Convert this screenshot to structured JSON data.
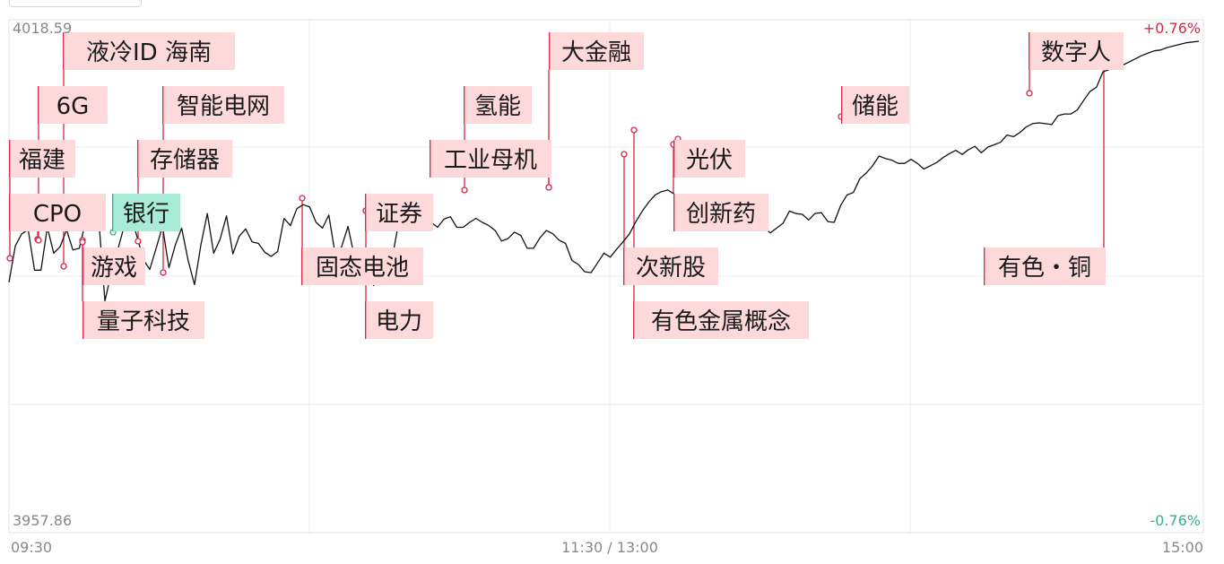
{
  "chart_data": {
    "type": "line",
    "y_max_label": "4018.59",
    "y_min_label": "3957.86",
    "pct_max_label": "+0.76%",
    "pct_min_label": "-0.76%",
    "ylim": [
      3957.86,
      4018.59
    ],
    "x_labels": [
      "09:30",
      "11:30 / 13:00",
      "15:00"
    ],
    "colors": {
      "up": "#d9264c",
      "down": "#2bb58a",
      "line": "#111111",
      "tag_up_bg": "#fdd9d9",
      "tag_down_bg": "#a8ecd7"
    },
    "series": [
      {
        "values": [
          3988.8,
          3993.3,
          3994.8,
          3995.3,
          3990.3,
          3990.3,
          3995.6,
          3992.4,
          3993.2,
          3995.3,
          3992.8,
          3993.0,
          3996.4,
          3997.1,
          3996.9,
          3986.5,
          3990.0,
          3992.8,
          3995.7,
          3997.0,
          3994.5,
          3991.6,
          3990.4,
          3993.0,
          3995.7,
          3990.6,
          3993.4,
          3995.5,
          3991.5,
          3988.5,
          3993.4,
          3997.3,
          3992.4,
          3994.1,
          3997.0,
          3992.3,
          3994.5,
          3995.4,
          3993.8,
          3993.6,
          3992.5,
          3992.0,
          3992.6,
          3996.7,
          3995.8,
          3997.9,
          3998.4,
          3998.1,
          3996.2,
          3995.5,
          3997.1,
          3992.2,
          3993.2,
          3995.7,
          3991.9,
          3990.8,
          3990.4,
          3988.4,
          3989.4,
          3990.3,
          3992.2,
          3996.6,
          3999.4,
          3996.8,
          3995.7,
          3997.5,
          3996.2,
          3995.6,
          3996.6,
          3996.9,
          3995.6,
          3995.6,
          3996.2,
          3996.7,
          3996.2,
          3995.8,
          3995.2,
          3993.9,
          3994.2,
          3995.0,
          3994.6,
          3993.0,
          3993.0,
          3994.3,
          3995.2,
          3994.8,
          3994.0,
          3993.6,
          3991.5,
          3991.0,
          3990.1,
          3990.0,
          3991.2,
          3992.4,
          3991.9,
          3992.9,
          3993.8,
          3994.8,
          3996.3,
          3997.6,
          3998.7,
          3999.6,
          4000.0,
          4000.2,
          3999.7,
          3998.4,
          3999.7,
          3999.2,
          3997.9,
          3997.1,
          3996.9,
          3997.2,
          3997.6,
          3996.8,
          3995.4,
          3996.3,
          3996.8,
          3995.7,
          3995.6,
          3994.9,
          3995.5,
          3996.1,
          3997.6,
          3997.3,
          3997.2,
          3996.5,
          3997.3,
          3997.4,
          3996.3,
          3996.2,
          3998.3,
          3999.6,
          3999.9,
          4001.6,
          4002.3,
          4003.2,
          4004.4,
          4004.1,
          4003.9,
          4003.5,
          4003.5,
          4004.0,
          4003.5,
          4002.8,
          4003.2,
          4003.6,
          4004.2,
          4004.7,
          4005.1,
          4004.6,
          4005.2,
          4005.6,
          4004.8,
          4005.5,
          4005.8,
          4006.1,
          4007.0,
          4006.8,
          4007.3,
          4008.0,
          4008.4,
          4008.5,
          4008.4,
          4008.3,
          4009.4,
          4009.6,
          4009.6,
          4010.1,
          4011.3,
          4012.4,
          4012.9,
          4014.8,
          4015.1,
          4015.4,
          4015.6,
          4016.0,
          4016.4,
          4016.8,
          4017.1,
          4017.4,
          4017.5,
          4017.8,
          4018.0,
          4018.2,
          4018.4,
          4018.5,
          4018.59
        ],
        "x_domain": [
          0,
          240
        ]
      }
    ],
    "tags": [
      {
        "label": "福建",
        "dir": "up"
      },
      {
        "label": "CPO",
        "dir": "up"
      },
      {
        "label": "6G",
        "dir": "up"
      },
      {
        "label": "液冷ID 海南",
        "dir": "up"
      },
      {
        "label": "游戏",
        "dir": "up"
      },
      {
        "label": "量子科技",
        "dir": "up"
      },
      {
        "label": "存储器",
        "dir": "up"
      },
      {
        "label": "银行",
        "dir": "down"
      },
      {
        "label": "智能电网",
        "dir": "up"
      },
      {
        "label": "固态电池",
        "dir": "up"
      },
      {
        "label": "证券",
        "dir": "up"
      },
      {
        "label": "电力",
        "dir": "up"
      },
      {
        "label": "氢能",
        "dir": "up"
      },
      {
        "label": "工业母机",
        "dir": "up"
      },
      {
        "label": "大金融",
        "dir": "up"
      },
      {
        "label": "次新股",
        "dir": "up"
      },
      {
        "label": "有色金属概念",
        "dir": "up"
      },
      {
        "label": "光伏",
        "dir": "up"
      },
      {
        "label": "创新药",
        "dir": "up"
      },
      {
        "label": "储能",
        "dir": "up"
      },
      {
        "label": "数字人",
        "dir": "up"
      },
      {
        "label": "有色・铜",
        "dir": "up"
      }
    ]
  }
}
